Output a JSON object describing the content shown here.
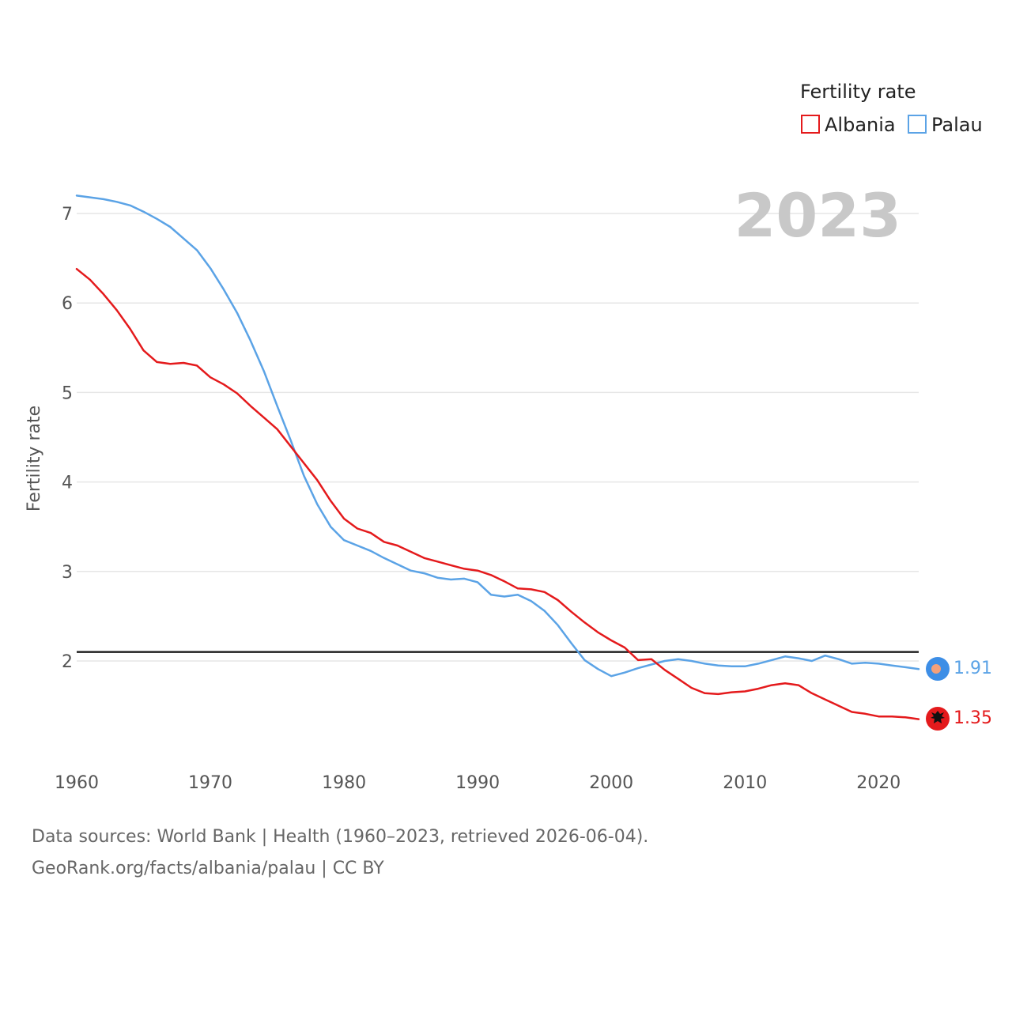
{
  "chart_data": {
    "type": "line",
    "year_label": "2023",
    "ylabel": "Fertility rate",
    "xlabel": "",
    "ylim": [
      0.8,
      7.3
    ],
    "xlim": [
      1960,
      2023
    ],
    "y_ticks": [
      2,
      3,
      4,
      5,
      6,
      7
    ],
    "x_ticks": [
      1960,
      1970,
      1980,
      1990,
      2000,
      2010,
      2020
    ],
    "reference_line": 2.1,
    "legend": {
      "title": "Fertility rate",
      "position": "top-right"
    },
    "colors": {
      "Albania": "#e41a1c",
      "Palau": "#5ba3e6",
      "reference": "#222222"
    },
    "x": [
      1960,
      1961,
      1962,
      1963,
      1964,
      1965,
      1966,
      1967,
      1968,
      1969,
      1970,
      1971,
      1972,
      1973,
      1974,
      1975,
      1976,
      1977,
      1978,
      1979,
      1980,
      1981,
      1982,
      1983,
      1984,
      1985,
      1986,
      1987,
      1988,
      1989,
      1990,
      1991,
      1992,
      1993,
      1994,
      1995,
      1996,
      1997,
      1998,
      1999,
      2000,
      2001,
      2002,
      2003,
      2004,
      2005,
      2006,
      2007,
      2008,
      2009,
      2010,
      2011,
      2012,
      2013,
      2014,
      2015,
      2016,
      2017,
      2018,
      2019,
      2020,
      2021,
      2022,
      2023
    ],
    "series": [
      {
        "name": "Albania",
        "end_label": "1.35",
        "values": [
          6.38,
          6.26,
          6.1,
          5.92,
          5.71,
          5.47,
          5.34,
          5.32,
          5.33,
          5.3,
          5.17,
          5.09,
          4.99,
          4.85,
          4.72,
          4.59,
          4.4,
          4.21,
          4.02,
          3.79,
          3.59,
          3.48,
          3.43,
          3.33,
          3.29,
          3.22,
          3.15,
          3.11,
          3.07,
          3.03,
          3.01,
          2.96,
          2.89,
          2.81,
          2.8,
          2.77,
          2.68,
          2.55,
          2.43,
          2.32,
          2.23,
          2.15,
          2.01,
          2.02,
          1.9,
          1.8,
          1.7,
          1.64,
          1.63,
          1.65,
          1.66,
          1.69,
          1.73,
          1.75,
          1.73,
          1.64,
          1.57,
          1.5,
          1.43,
          1.41,
          1.38,
          1.38,
          1.37,
          1.35
        ]
      },
      {
        "name": "Palau",
        "end_label": "1.91",
        "values": [
          7.2,
          7.18,
          7.16,
          7.13,
          7.09,
          7.02,
          6.94,
          6.85,
          6.72,
          6.59,
          6.39,
          6.15,
          5.89,
          5.58,
          5.24,
          4.85,
          4.47,
          4.07,
          3.75,
          3.5,
          3.35,
          3.29,
          3.23,
          3.15,
          3.08,
          3.01,
          2.98,
          2.93,
          2.91,
          2.92,
          2.88,
          2.74,
          2.72,
          2.74,
          2.67,
          2.56,
          2.4,
          2.2,
          2.01,
          1.91,
          1.83,
          1.87,
          1.92,
          1.96,
          2.0,
          2.02,
          2.0,
          1.97,
          1.95,
          1.94,
          1.94,
          1.97,
          2.01,
          2.05,
          2.03,
          2.0,
          2.06,
          2.02,
          1.97,
          1.98,
          1.97,
          1.95,
          1.93,
          1.91
        ]
      }
    ]
  },
  "footer": {
    "sources": "Data sources: World Bank | Health (1960–2023, retrieved 2026-06-04).",
    "credit": "GeoRank.org/facts/albania/palau | CC BY"
  }
}
